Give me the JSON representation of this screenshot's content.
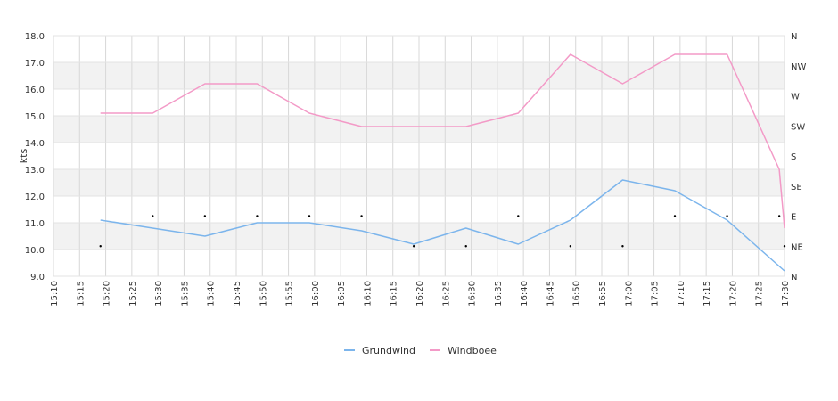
{
  "chart_data": {
    "type": "line",
    "ylabel": "kts",
    "ylim": [
      9.0,
      18.0
    ],
    "y_ticks": [
      "9.0",
      "10.0",
      "11.0",
      "12.0",
      "13.0",
      "14.0",
      "15.0",
      "16.0",
      "17.0",
      "18.0"
    ],
    "y2_ticks": [
      "N",
      "NE",
      "E",
      "SE",
      "S",
      "SW",
      "W",
      "NW",
      "N"
    ],
    "x_ticks": [
      "15:10",
      "15:15",
      "15:20",
      "15:25",
      "15:30",
      "15:35",
      "15:40",
      "15:45",
      "15:50",
      "15:55",
      "16:00",
      "16:05",
      "16:10",
      "16:15",
      "16:20",
      "16:25",
      "16:30",
      "16:35",
      "16:40",
      "16:45",
      "16:50",
      "16:55",
      "17:00",
      "17:05",
      "17:10",
      "17:15",
      "17:20",
      "17:25",
      "17:30"
    ],
    "x_range": [
      "15:10",
      "17:30"
    ],
    "grid": true,
    "legend_position": "bottom",
    "series": [
      {
        "name": "Grundwind",
        "color": "#7cb5ec",
        "points": [
          [
            "15:19",
            11.1
          ],
          [
            "15:29",
            10.8
          ],
          [
            "15:39",
            10.5
          ],
          [
            "15:49",
            11.0
          ],
          [
            "15:59",
            11.0
          ],
          [
            "16:09",
            10.7
          ],
          [
            "16:19",
            10.2
          ],
          [
            "16:29",
            10.8
          ],
          [
            "16:39",
            10.2
          ],
          [
            "16:49",
            11.1
          ],
          [
            "16:59",
            12.6
          ],
          [
            "17:09",
            12.2
          ],
          [
            "17:19",
            11.1
          ],
          [
            "17:30",
            9.2
          ]
        ]
      },
      {
        "name": "Windboee",
        "color": "#f39ac7",
        "points": [
          [
            "15:19",
            15.1
          ],
          [
            "15:29",
            15.1
          ],
          [
            "15:39",
            16.2
          ],
          [
            "15:49",
            16.2
          ],
          [
            "15:59",
            15.1
          ],
          [
            "16:09",
            14.6
          ],
          [
            "16:19",
            14.6
          ],
          [
            "16:29",
            14.6
          ],
          [
            "16:39",
            15.1
          ],
          [
            "16:49",
            17.3
          ],
          [
            "16:59",
            16.2
          ],
          [
            "17:09",
            17.3
          ],
          [
            "17:19",
            17.3
          ],
          [
            "17:29",
            13.0
          ],
          [
            "17:30",
            10.8
          ]
        ]
      }
    ],
    "direction_markers": {
      "points": [
        [
          "15:19",
          "NE"
        ],
        [
          "15:29",
          "E"
        ],
        [
          "15:39",
          "E"
        ],
        [
          "15:49",
          "E"
        ],
        [
          "15:59",
          "E"
        ],
        [
          "16:09",
          "E"
        ],
        [
          "16:19",
          "NE"
        ],
        [
          "16:29",
          "NE"
        ],
        [
          "16:39",
          "E"
        ],
        [
          "16:49",
          "NE"
        ],
        [
          "16:59",
          "NE"
        ],
        [
          "17:09",
          "E"
        ],
        [
          "17:19",
          "E"
        ],
        [
          "17:29",
          "E"
        ],
        [
          "17:30",
          "NE"
        ]
      ]
    }
  }
}
